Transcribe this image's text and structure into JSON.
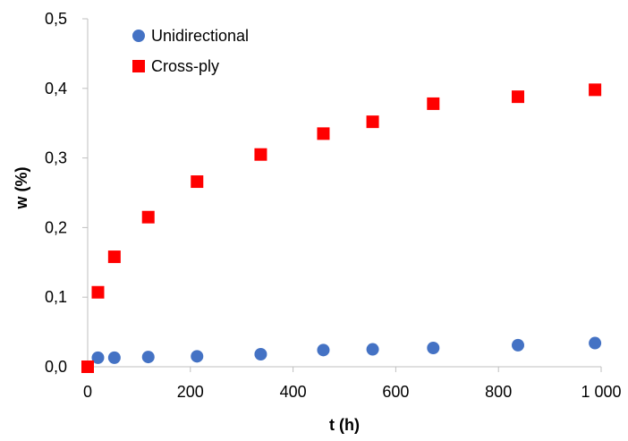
{
  "chart_data": {
    "type": "scatter",
    "title": "",
    "xlabel": "t (h)",
    "ylabel": "w (%)",
    "xlim": [
      0,
      1000
    ],
    "ylim": [
      0,
      0.5
    ],
    "x_ticks": [
      0,
      200,
      400,
      600,
      800,
      1000
    ],
    "x_tick_labels": [
      "0",
      "200",
      "400",
      "600",
      "800",
      "1 000"
    ],
    "y_ticks": [
      0,
      0.1,
      0.2,
      0.3,
      0.4,
      0.5
    ],
    "y_tick_labels": [
      "0,0",
      "0,1",
      "0,2",
      "0,3",
      "0,4",
      "0,5"
    ],
    "grid": false,
    "legend": "top-left",
    "series": [
      {
        "name": "Unidirectional",
        "marker": "circle",
        "color": "#4472C4",
        "points": [
          {
            "x": 0,
            "y": 0.0
          },
          {
            "x": 20,
            "y": 0.013
          },
          {
            "x": 52,
            "y": 0.013
          },
          {
            "x": 118,
            "y": 0.014
          },
          {
            "x": 213,
            "y": 0.015
          },
          {
            "x": 337,
            "y": 0.018
          },
          {
            "x": 459,
            "y": 0.024
          },
          {
            "x": 555,
            "y": 0.025
          },
          {
            "x": 673,
            "y": 0.027
          },
          {
            "x": 838,
            "y": 0.031
          },
          {
            "x": 988,
            "y": 0.034
          }
        ]
      },
      {
        "name": "Cross-ply",
        "marker": "square",
        "color": "#FF0000",
        "points": [
          {
            "x": 0,
            "y": 0.0
          },
          {
            "x": 20,
            "y": 0.107
          },
          {
            "x": 52,
            "y": 0.158
          },
          {
            "x": 118,
            "y": 0.215
          },
          {
            "x": 213,
            "y": 0.266
          },
          {
            "x": 337,
            "y": 0.305
          },
          {
            "x": 459,
            "y": 0.335
          },
          {
            "x": 555,
            "y": 0.352
          },
          {
            "x": 673,
            "y": 0.378
          },
          {
            "x": 838,
            "y": 0.388
          },
          {
            "x": 988,
            "y": 0.398
          }
        ]
      }
    ]
  }
}
